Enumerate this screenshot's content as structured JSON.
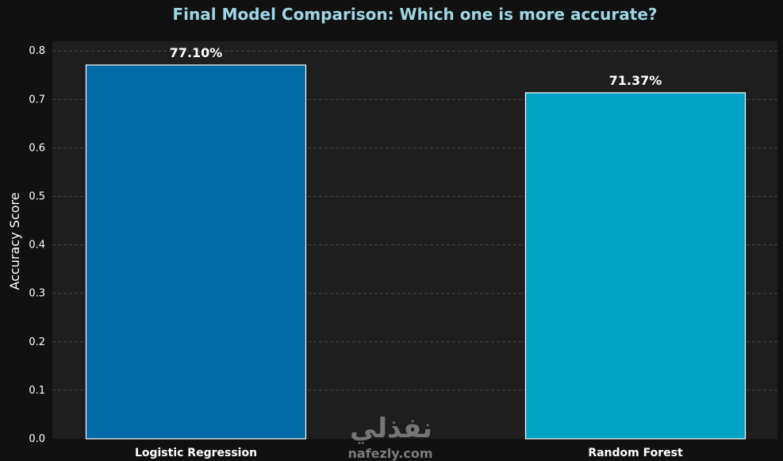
{
  "chart_data": {
    "type": "bar",
    "title": "Final Model Comparison: Which one is more accurate?",
    "ylabel": "Accuracy Score",
    "xlabel": "",
    "categories": [
      "Logistic Regression",
      "Random Forest"
    ],
    "values": [
      0.771,
      0.7137
    ],
    "value_labels": [
      "77.10%",
      "71.37%"
    ],
    "ylim": [
      0,
      0.82
    ],
    "yticks": [
      "0.0",
      "0.1",
      "0.2",
      "0.3",
      "0.4",
      "0.5",
      "0.6",
      "0.7",
      "0.8"
    ],
    "grid": true,
    "colors": {
      "bars": [
        "#006ba4",
        "#00a3c4"
      ],
      "bar_edge": "#ffffff",
      "title": "#9ed6e3",
      "plot_bg": "#1e1e1e",
      "page_bg": "#111111",
      "grid": "#4a4a4a"
    }
  },
  "watermark": {
    "arabic": "نفذلي",
    "text": "nafezly.com"
  }
}
